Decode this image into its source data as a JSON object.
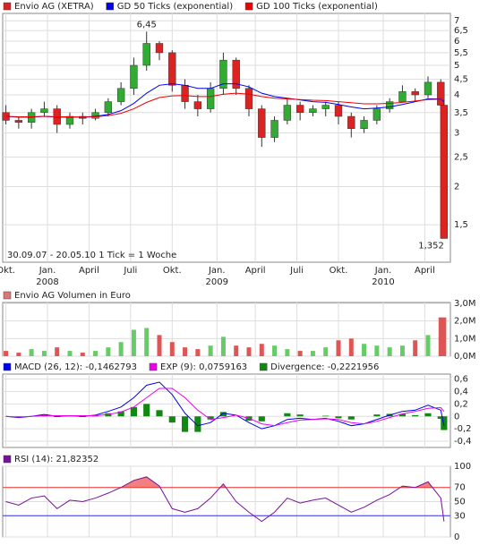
{
  "chart_data": [
    {
      "type": "candlestick",
      "name": "Envio AG (XETRA)",
      "color": "#dd2222",
      "up_color": "#33aa33",
      "down_color": "#dd2222",
      "note": "30.09.07 - 20.05.10   1 Tick = 1 Woche",
      "log_scale": true,
      "grid": true,
      "xlim": [
        -1,
        139
      ],
      "xticks": [
        {
          "value": 0,
          "label": "Okt."
        },
        {
          "value": 13,
          "label": "Jan."
        },
        {
          "value": 26,
          "label": "April"
        },
        {
          "value": 39,
          "label": "Juli"
        },
        {
          "value": 52,
          "label": "Okt."
        },
        {
          "value": 66,
          "label": "Jan."
        },
        {
          "value": 78,
          "label": "April"
        },
        {
          "value": 91,
          "label": "Juli"
        },
        {
          "value": 104,
          "label": "Okt."
        },
        {
          "value": 118,
          "label": "Jan."
        },
        {
          "value": 131,
          "label": "April"
        }
      ],
      "year_labels": [
        {
          "value": 13,
          "label": "2008"
        },
        {
          "value": 66,
          "label": "2009"
        },
        {
          "value": 118,
          "label": "2010"
        }
      ],
      "ylim": [
        1.13,
        7.4
      ],
      "yticks": [
        {
          "value": 1.5,
          "label": "1,5"
        },
        2,
        {
          "value": 2.5,
          "label": "2,5"
        },
        3,
        {
          "value": 3.5,
          "label": "3,5"
        },
        4,
        {
          "value": 4.5,
          "label": "4,5"
        },
        5,
        {
          "value": 5.5,
          "label": "5,5"
        },
        6,
        {
          "value": 6.5,
          "label": "6,5"
        },
        7
      ],
      "x": [
        0,
        4,
        8,
        12,
        16,
        20,
        24,
        28,
        32,
        36,
        40,
        44,
        48,
        52,
        56,
        60,
        64,
        68,
        72,
        76,
        80,
        84,
        88,
        92,
        96,
        100,
        104,
        108,
        112,
        116,
        120,
        124,
        128,
        132,
        136,
        137
      ],
      "open": [
        3.5,
        3.3,
        3.25,
        3.5,
        3.6,
        3.2,
        3.4,
        3.35,
        3.5,
        3.8,
        4.2,
        5.0,
        5.9,
        5.5,
        4.3,
        3.8,
        3.6,
        4.2,
        5.2,
        4.2,
        3.6,
        2.9,
        3.3,
        3.7,
        3.5,
        3.6,
        3.7,
        3.4,
        3.1,
        3.3,
        3.6,
        3.8,
        4.1,
        4.0,
        4.4,
        3.7
      ],
      "high": [
        3.7,
        3.4,
        3.6,
        3.8,
        3.7,
        3.5,
        3.5,
        3.6,
        3.9,
        4.4,
        5.3,
        6.45,
        6.0,
        5.6,
        4.5,
        4.0,
        4.4,
        5.5,
        5.3,
        4.3,
        3.7,
        3.4,
        3.9,
        3.8,
        3.7,
        3.8,
        3.8,
        3.5,
        3.4,
        3.7,
        3.9,
        4.3,
        4.2,
        4.6,
        4.5,
        3.8
      ],
      "low": [
        3.2,
        3.1,
        3.1,
        3.4,
        3.0,
        3.1,
        3.2,
        3.3,
        3.4,
        3.7,
        4.0,
        4.8,
        5.2,
        4.1,
        3.6,
        3.4,
        3.5,
        4.0,
        4.0,
        3.4,
        2.7,
        2.8,
        3.2,
        3.3,
        3.4,
        3.4,
        3.2,
        2.9,
        3.0,
        3.2,
        3.5,
        3.8,
        3.8,
        3.9,
        3.6,
        1.352
      ],
      "close": [
        3.3,
        3.25,
        3.5,
        3.6,
        3.2,
        3.4,
        3.35,
        3.5,
        3.8,
        4.2,
        5.0,
        5.9,
        5.5,
        4.3,
        3.8,
        3.6,
        4.2,
        5.2,
        4.2,
        3.6,
        2.9,
        3.3,
        3.7,
        3.5,
        3.6,
        3.7,
        3.4,
        3.1,
        3.3,
        3.6,
        3.8,
        4.1,
        4.0,
        4.4,
        3.7,
        1.352
      ],
      "annotations": [
        {
          "x": 44,
          "value": 6.45,
          "label": "6,45"
        },
        {
          "x": 137,
          "value": 1.352,
          "label": "1,352"
        }
      ],
      "series": [
        {
          "name": "GD 50 Ticks (exponential)",
          "color": "#0000ee",
          "values": [
            3.4,
            3.38,
            3.38,
            3.4,
            3.38,
            3.38,
            3.38,
            3.4,
            3.45,
            3.55,
            3.75,
            4.05,
            4.3,
            4.35,
            4.3,
            4.2,
            4.2,
            4.35,
            4.35,
            4.25,
            4.05,
            3.95,
            3.9,
            3.85,
            3.8,
            3.78,
            3.72,
            3.65,
            3.6,
            3.62,
            3.65,
            3.72,
            3.8,
            3.88,
            3.88,
            3.8
          ]
        },
        {
          "name": "GD 100 Ticks (exponential)",
          "color": "#ee0000",
          "values": [
            3.4,
            3.39,
            3.39,
            3.4,
            3.39,
            3.39,
            3.38,
            3.39,
            3.42,
            3.48,
            3.6,
            3.78,
            3.92,
            3.97,
            3.98,
            3.95,
            3.95,
            4.02,
            4.05,
            4.02,
            3.95,
            3.9,
            3.88,
            3.86,
            3.84,
            3.83,
            3.8,
            3.77,
            3.74,
            3.74,
            3.75,
            3.78,
            3.82,
            3.86,
            3.87,
            3.84
          ]
        }
      ]
    },
    {
      "type": "bar",
      "name": "Envio AG Volumen in Euro",
      "color": "#dd7777",
      "up_color": "#66cc66",
      "down_color": "#dd5555",
      "grid": true,
      "ylim": [
        0,
        3.05
      ],
      "yticks": [
        {
          "value": 0,
          "label": "0,0M"
        },
        {
          "value": 1,
          "label": "1,0M"
        },
        {
          "value": 2,
          "label": "2,0M"
        },
        {
          "value": 3,
          "label": "3,0M"
        }
      ],
      "values": [
        0.3,
        0.2,
        0.4,
        0.3,
        0.5,
        0.3,
        0.2,
        0.3,
        0.5,
        0.8,
        1.5,
        1.6,
        1.2,
        0.8,
        0.5,
        0.4,
        0.6,
        1.1,
        0.6,
        0.5,
        0.7,
        0.6,
        0.4,
        0.3,
        0.3,
        0.5,
        0.9,
        1.0,
        0.7,
        0.6,
        0.5,
        0.6,
        0.9,
        1.2,
        2.2,
        2.2
      ]
    },
    {
      "type": "line",
      "grid": true,
      "ylim": [
        -0.5,
        0.68
      ],
      "yticks": [
        {
          "value": -0.4,
          "label": "-0,4"
        },
        {
          "value": -0.2,
          "label": "-0,2"
        },
        0,
        {
          "value": 0.2,
          "label": "0,2"
        },
        {
          "value": 0.4,
          "label": "0,4"
        },
        {
          "value": 0.6,
          "label": "0,6"
        }
      ],
      "series": [
        {
          "name": "MACD (26, 12): -0,1462793",
          "color": "#0000ee",
          "values": [
            0,
            -0.02,
            0,
            0.03,
            0,
            0.01,
            0,
            0.02,
            0.08,
            0.15,
            0.3,
            0.5,
            0.55,
            0.35,
            0.05,
            -0.15,
            -0.1,
            0.05,
            0.02,
            -0.1,
            -0.2,
            -0.15,
            -0.05,
            -0.03,
            -0.05,
            -0.03,
            -0.08,
            -0.15,
            -0.12,
            -0.05,
            0.02,
            0.08,
            0.1,
            0.18,
            0.1,
            -0.15
          ]
        },
        {
          "name": "EXP (9): 0,0759163",
          "color": "#ee00ee",
          "values": [
            0,
            -0.01,
            0,
            0.01,
            0.01,
            0.01,
            0.01,
            0.01,
            0.03,
            0.07,
            0.15,
            0.3,
            0.45,
            0.45,
            0.3,
            0.1,
            -0.05,
            -0.02,
            0.02,
            -0.03,
            -0.12,
            -0.15,
            -0.1,
            -0.06,
            -0.05,
            -0.04,
            -0.05,
            -0.1,
            -0.12,
            -0.08,
            -0.02,
            0.04,
            0.08,
            0.13,
            0.14,
            0.08
          ]
        },
        {
          "name": "Divergence: -0,2221956",
          "color": "#118811",
          "kind": "bar",
          "values": [
            0,
            -0.01,
            0,
            0.02,
            -0.01,
            0,
            -0.01,
            0.01,
            0.05,
            0.08,
            0.15,
            0.2,
            0.1,
            -0.1,
            -0.25,
            -0.25,
            -0.05,
            0.07,
            0,
            -0.07,
            -0.08,
            0,
            0.05,
            0.03,
            0,
            0.01,
            -0.03,
            -0.05,
            0,
            0.03,
            0.04,
            0.04,
            0.02,
            0.05,
            -0.04,
            -0.22
          ]
        }
      ]
    },
    {
      "type": "line",
      "grid": true,
      "ylim": [
        0,
        100
      ],
      "yticks": [
        0,
        30,
        50,
        70,
        100
      ],
      "ref_lines": [
        {
          "value": 70,
          "color": "#ee3333"
        },
        {
          "value": 30,
          "color": "#3333ee"
        }
      ],
      "fill_above": {
        "value": 70,
        "color": "#f08080"
      },
      "series": [
        {
          "name": "RSI (14): 21,82352",
          "color": "#771199",
          "values": [
            50,
            45,
            55,
            58,
            40,
            52,
            50,
            55,
            62,
            70,
            80,
            85,
            72,
            40,
            35,
            40,
            55,
            75,
            50,
            35,
            22,
            35,
            55,
            48,
            52,
            55,
            45,
            35,
            42,
            52,
            60,
            72,
            70,
            78,
            55,
            22
          ]
        }
      ]
    }
  ]
}
